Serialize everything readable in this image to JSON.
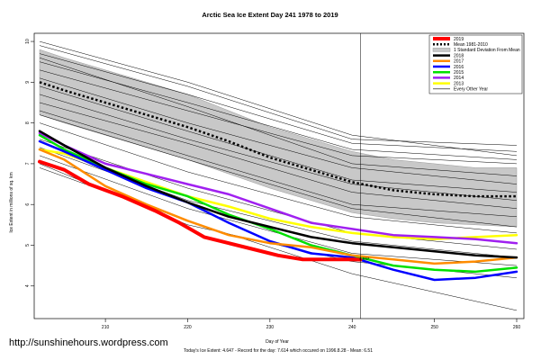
{
  "chart_data": {
    "type": "line",
    "title": "Arctic Sea Ice Extent Day 241 1978 to 2019",
    "xlabel": "Day of Year",
    "ylabel": "Ice Extent in millions of sq. km",
    "xlim": [
      202,
      260
    ],
    "ylim": [
      3.2,
      10.2
    ],
    "xticks": [
      210,
      220,
      230,
      240,
      250,
      260
    ],
    "yticks": [
      4,
      5,
      6,
      7,
      8,
      9,
      10
    ],
    "grid": false,
    "legend_position": "top-right",
    "vline": {
      "x": 241
    },
    "annotation": "4.647",
    "footer": "Today's Ice Extent: 4.647   - Record for the day: 7.614 which occured on 1996.8.28   - Mean: 6.51",
    "watermark": "http://sunshinehours.wordpress.com",
    "legend": [
      {
        "label": "2019",
        "color": "#ff0000",
        "style": "solid",
        "width": 4
      },
      {
        "label": "Mean 1981-2010",
        "color": "#000000",
        "style": "dotted",
        "width": 2.5
      },
      {
        "label": "1 Standard Deviation From Mean",
        "color": "#c8c8c8",
        "style": "box",
        "width": 1
      },
      {
        "label": "2018",
        "color": "#000000",
        "style": "solid",
        "width": 2.5
      },
      {
        "label": "2017",
        "color": "#ff8c00",
        "style": "solid",
        "width": 2.5
      },
      {
        "label": "2016",
        "color": "#0000ff",
        "style": "solid",
        "width": 2.5
      },
      {
        "label": "2015",
        "color": "#00e000",
        "style": "solid",
        "width": 2.5
      },
      {
        "label": "2014",
        "color": "#a020f0",
        "style": "solid",
        "width": 2.5
      },
      {
        "label": "2013",
        "color": "#ffff00",
        "style": "solid",
        "width": 2.5
      },
      {
        "label": "Every Other Year",
        "color": "#000000",
        "style": "solid",
        "width": 0.6
      }
    ],
    "band": {
      "x": [
        202,
        205,
        210,
        215,
        220,
        225,
        230,
        235,
        240,
        245,
        250,
        255,
        260
      ],
      "upper": [
        9.8,
        9.6,
        9.3,
        9.0,
        8.7,
        8.3,
        7.9,
        7.6,
        7.3,
        7.1,
        7.0,
        6.9,
        6.9
      ],
      "lower": [
        8.2,
        8.0,
        7.7,
        7.4,
        7.1,
        6.75,
        6.4,
        6.1,
        5.8,
        5.65,
        5.55,
        5.5,
        5.45
      ]
    },
    "mean": {
      "x": [
        202,
        205,
        210,
        215,
        220,
        225,
        230,
        235,
        240,
        245,
        250,
        255,
        260
      ],
      "y": [
        9.0,
        8.8,
        8.5,
        8.2,
        7.9,
        7.55,
        7.15,
        6.85,
        6.55,
        6.35,
        6.25,
        6.2,
        6.2
      ]
    },
    "highlighted_series": [
      {
        "name": "2019",
        "color": "#ff0000",
        "width": 4,
        "x": [
          202,
          205,
          208,
          212,
          216,
          219,
          222,
          225,
          228,
          231,
          234,
          237,
          240,
          241
        ],
        "y": [
          7.05,
          6.85,
          6.5,
          6.2,
          5.85,
          5.55,
          5.2,
          5.05,
          4.9,
          4.75,
          4.65,
          4.65,
          4.65,
          4.647
        ]
      },
      {
        "name": "2018",
        "color": "#000000",
        "width": 2.5,
        "x": [
          202,
          205,
          210,
          215,
          220,
          225,
          230,
          235,
          240,
          245,
          250,
          255,
          260
        ],
        "y": [
          7.8,
          7.45,
          6.9,
          6.45,
          6.05,
          5.7,
          5.45,
          5.2,
          5.05,
          4.95,
          4.85,
          4.75,
          4.7
        ]
      },
      {
        "name": "2017",
        "color": "#ff8c00",
        "width": 2.5,
        "x": [
          202,
          205,
          210,
          215,
          220,
          225,
          230,
          235,
          240,
          245,
          250,
          255,
          260
        ],
        "y": [
          7.35,
          7.1,
          6.45,
          6.0,
          5.6,
          5.25,
          5.05,
          4.95,
          4.75,
          4.65,
          4.55,
          4.6,
          4.7
        ]
      },
      {
        "name": "2016",
        "color": "#0000ff",
        "width": 2.5,
        "x": [
          202,
          205,
          210,
          215,
          220,
          225,
          230,
          235,
          240,
          245,
          250,
          255,
          260
        ],
        "y": [
          7.55,
          7.3,
          6.85,
          6.4,
          6.05,
          5.55,
          5.1,
          4.8,
          4.7,
          4.4,
          4.15,
          4.2,
          4.35
        ]
      },
      {
        "name": "2015",
        "color": "#00e000",
        "width": 2.5,
        "x": [
          202,
          205,
          210,
          215,
          220,
          225,
          230,
          235,
          240,
          245,
          250,
          255,
          260
        ],
        "y": [
          7.7,
          7.35,
          6.9,
          6.5,
          6.2,
          5.75,
          5.4,
          5.0,
          4.75,
          4.5,
          4.4,
          4.35,
          4.45
        ]
      },
      {
        "name": "2014",
        "color": "#a020f0",
        "width": 2.5,
        "x": [
          202,
          205,
          210,
          215,
          220,
          225,
          230,
          235,
          240,
          245,
          250,
          255,
          260
        ],
        "y": [
          7.75,
          7.45,
          7.0,
          6.75,
          6.5,
          6.25,
          5.9,
          5.55,
          5.4,
          5.25,
          5.2,
          5.15,
          5.05
        ]
      },
      {
        "name": "2013",
        "color": "#ffff00",
        "width": 2.5,
        "x": [
          202,
          205,
          210,
          215,
          220,
          225,
          230,
          235,
          240,
          245,
          250,
          255,
          260
        ],
        "y": [
          7.35,
          7.25,
          6.9,
          6.55,
          6.2,
          5.95,
          5.65,
          5.45,
          5.3,
          5.2,
          5.15,
          5.2,
          5.25
        ]
      }
    ],
    "other_years": [
      {
        "x": [
          202,
          220,
          240,
          260
        ],
        "y": [
          10.0,
          9.0,
          7.7,
          7.2
        ]
      },
      {
        "x": [
          202,
          220,
          240,
          260
        ],
        "y": [
          9.9,
          8.9,
          7.6,
          7.45
        ]
      },
      {
        "x": [
          202,
          220,
          240,
          260
        ],
        "y": [
          9.7,
          8.7,
          7.5,
          7.3
        ]
      },
      {
        "x": [
          202,
          220,
          240,
          260
        ],
        "y": [
          9.5,
          8.5,
          7.35,
          7.1
        ]
      },
      {
        "x": [
          202,
          220,
          240,
          260
        ],
        "y": [
          9.3,
          8.3,
          7.2,
          7.0
        ]
      },
      {
        "x": [
          202,
          220,
          240,
          260
        ],
        "y": [
          9.6,
          8.4,
          7.0,
          6.7
        ]
      },
      {
        "x": [
          202,
          220,
          240,
          260
        ],
        "y": [
          9.1,
          8.0,
          6.9,
          6.5
        ]
      },
      {
        "x": [
          202,
          220,
          240,
          260
        ],
        "y": [
          8.9,
          7.8,
          6.6,
          6.3
        ]
      },
      {
        "x": [
          202,
          220,
          240,
          260
        ],
        "y": [
          8.7,
          7.6,
          6.5,
          6.1
        ]
      },
      {
        "x": [
          202,
          220,
          240,
          260
        ],
        "y": [
          8.5,
          7.5,
          6.3,
          5.9
        ]
      },
      {
        "x": [
          202,
          220,
          240,
          260
        ],
        "y": [
          8.3,
          7.2,
          6.0,
          5.7
        ]
      },
      {
        "x": [
          202,
          220,
          240,
          260
        ],
        "y": [
          8.2,
          7.1,
          5.9,
          5.45
        ]
      },
      {
        "x": [
          202,
          220,
          240,
          260
        ],
        "y": [
          8.0,
          6.8,
          5.7,
          5.3
        ]
      },
      {
        "x": [
          202,
          220,
          240,
          260
        ],
        "y": [
          7.6,
          6.4,
          5.3,
          4.9
        ]
      },
      {
        "x": [
          202,
          220,
          240,
          260
        ],
        "y": [
          7.4,
          6.1,
          5.1,
          4.7
        ]
      },
      {
        "x": [
          202,
          220,
          240,
          260
        ],
        "y": [
          7.2,
          5.9,
          4.8,
          4.5
        ]
      },
      {
        "x": [
          202,
          220,
          240,
          260
        ],
        "y": [
          6.9,
          5.6,
          4.3,
          3.4
        ]
      },
      {
        "x": [
          202,
          220,
          240,
          260
        ],
        "y": [
          7.0,
          5.5,
          4.6,
          4.2
        ]
      }
    ]
  }
}
